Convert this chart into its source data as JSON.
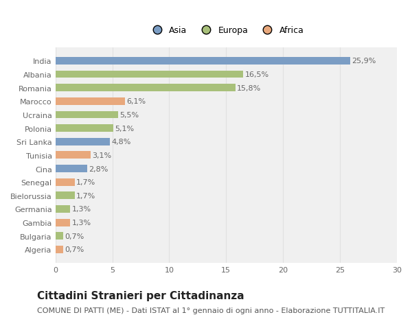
{
  "categories": [
    "Algeria",
    "Bulgaria",
    "Gambia",
    "Germania",
    "Bielorussia",
    "Senegal",
    "Cina",
    "Tunisia",
    "Sri Lanka",
    "Polonia",
    "Ucraina",
    "Marocco",
    "Romania",
    "Albania",
    "India"
  ],
  "values": [
    0.7,
    0.7,
    1.3,
    1.3,
    1.7,
    1.7,
    2.8,
    3.1,
    4.8,
    5.1,
    5.5,
    6.1,
    15.8,
    16.5,
    25.9
  ],
  "labels": [
    "0,7%",
    "0,7%",
    "1,3%",
    "1,3%",
    "1,7%",
    "1,7%",
    "2,8%",
    "3,1%",
    "4,8%",
    "5,1%",
    "5,5%",
    "6,1%",
    "15,8%",
    "16,5%",
    "25,9%"
  ],
  "colors": [
    "#E8A87C",
    "#A8C07A",
    "#E8A87C",
    "#A8C07A",
    "#A8C07A",
    "#E8A87C",
    "#7B9DC4",
    "#E8A87C",
    "#7B9DC4",
    "#A8C07A",
    "#A8C07A",
    "#E8A87C",
    "#A8C07A",
    "#A8C07A",
    "#7B9DC4"
  ],
  "legend_labels": [
    "Asia",
    "Europa",
    "Africa"
  ],
  "legend_colors": [
    "#7B9DC4",
    "#A8C07A",
    "#E8A87C"
  ],
  "title": "Cittadini Stranieri per Cittadinanza",
  "subtitle": "COMUNE DI PATTI (ME) - Dati ISTAT al 1° gennaio di ogni anno - Elaborazione TUTTITALIA.IT",
  "xlim": [
    0,
    30
  ],
  "xticks": [
    0,
    5,
    10,
    15,
    20,
    25,
    30
  ],
  "bg_color": "#ffffff",
  "bar_bg_color": "#f0f0f0",
  "label_color": "#666666",
  "grid_color": "#e0e0e0",
  "title_fontsize": 11,
  "subtitle_fontsize": 8,
  "tick_fontsize": 8,
  "label_fontsize": 8,
  "legend_fontsize": 9,
  "bar_height": 0.55
}
